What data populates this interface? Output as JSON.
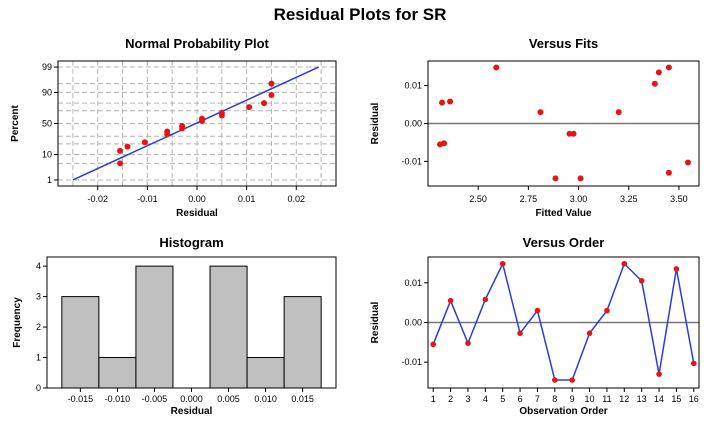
{
  "main_title": "Residual Plots for SR",
  "chart_data": [
    {
      "id": "normal",
      "type": "scatter",
      "title": "Normal Probability Plot",
      "xlabel": "Residual",
      "ylabel": "Percent",
      "xlim": [
        -0.028,
        0.028
      ],
      "x_ticks": [
        -0.02,
        -0.01,
        0.0,
        0.01,
        0.02
      ],
      "x_tick_labels": [
        "-0.02",
        "-0.01",
        "0.00",
        "0.01",
        "0.02"
      ],
      "y_scale": "normal-probability",
      "y_ticks": [
        1,
        10,
        50,
        90,
        99
      ],
      "y_tick_labels": [
        "1",
        "10",
        "50",
        "90",
        "99"
      ],
      "ylim": [
        1,
        99
      ],
      "grid": true,
      "fit_line": {
        "x": [
          -0.025,
          0.0245
        ],
        "y": [
          1,
          99
        ],
        "color": "#2a3cdc"
      },
      "points": [
        {
          "x": -0.0155,
          "y": 5.0
        },
        {
          "x": -0.0155,
          "y": 13.0
        },
        {
          "x": -0.014,
          "y": 17.0
        },
        {
          "x": -0.0105,
          "y": 22.0
        },
        {
          "x": -0.006,
          "y": 33.0
        },
        {
          "x": -0.006,
          "y": 37.0
        },
        {
          "x": -0.003,
          "y": 42.0
        },
        {
          "x": -0.003,
          "y": 46.0
        },
        {
          "x": 0.001,
          "y": 54.0
        },
        {
          "x": 0.001,
          "y": 58.0
        },
        {
          "x": 0.005,
          "y": 63.0
        },
        {
          "x": 0.005,
          "y": 67.0
        },
        {
          "x": 0.0105,
          "y": 75.0
        },
        {
          "x": 0.0135,
          "y": 80.0
        },
        {
          "x": 0.015,
          "y": 88.0
        },
        {
          "x": 0.015,
          "y": 95.0
        }
      ],
      "point_color": "#e81414"
    },
    {
      "id": "fits",
      "type": "scatter",
      "title": "Versus Fits",
      "xlabel": "Fitted Value",
      "ylabel": "Residual",
      "xlim": [
        2.25,
        3.6
      ],
      "x_ticks": [
        2.5,
        2.75,
        3.0,
        3.25,
        3.5
      ],
      "x_tick_labels": [
        "2.50",
        "2.75",
        "3.00",
        "3.25",
        "3.50"
      ],
      "ylim": [
        -0.0165,
        0.0165
      ],
      "y_ticks": [
        -0.01,
        0.0,
        0.01
      ],
      "y_tick_labels": [
        "-0.01",
        "0.00",
        "0.01"
      ],
      "ref_line": 0,
      "grid": false,
      "points": [
        {
          "x": 2.31,
          "y": -0.0055
        },
        {
          "x": 2.32,
          "y": 0.0055
        },
        {
          "x": 2.33,
          "y": -0.0052
        },
        {
          "x": 2.36,
          "y": 0.0058
        },
        {
          "x": 2.59,
          "y": 0.0148
        },
        {
          "x": 2.81,
          "y": 0.003
        },
        {
          "x": 2.885,
          "y": -0.0145
        },
        {
          "x": 2.955,
          "y": -0.0027
        },
        {
          "x": 2.975,
          "y": -0.0027
        },
        {
          "x": 3.01,
          "y": -0.0145
        },
        {
          "x": 3.2,
          "y": 0.003
        },
        {
          "x": 3.38,
          "y": 0.0105
        },
        {
          "x": 3.4,
          "y": 0.0135
        },
        {
          "x": 3.45,
          "y": 0.0148
        },
        {
          "x": 3.45,
          "y": -0.013
        },
        {
          "x": 3.545,
          "y": -0.0103
        }
      ],
      "point_color": "#e81414"
    },
    {
      "id": "hist",
      "type": "bar",
      "title": "Histogram",
      "xlabel": "Residual",
      "ylabel": "Frequency",
      "xlim": [
        -0.0195,
        0.0195
      ],
      "bin_centers": [
        -0.015,
        -0.01,
        -0.005,
        0.0,
        0.005,
        0.01,
        0.015
      ],
      "bin_width": 0.005,
      "values": [
        3,
        1,
        4,
        0,
        4,
        1,
        3
      ],
      "x_tick_labels": [
        "-0.015",
        "-0.010",
        "-0.005",
        "0.000",
        "0.005",
        "0.010",
        "0.015"
      ],
      "ylim": [
        0,
        4.3
      ],
      "y_ticks": [
        0,
        1,
        2,
        3,
        4
      ],
      "y_tick_labels": [
        "0",
        "1",
        "2",
        "3",
        "4"
      ],
      "bar_color": "#c0c0c0"
    },
    {
      "id": "order",
      "type": "line",
      "title": "Versus Order",
      "xlabel": "Observation Order",
      "ylabel": "Residual",
      "xlim": [
        0.7,
        16.3
      ],
      "x": [
        1,
        2,
        3,
        4,
        5,
        6,
        7,
        8,
        9,
        10,
        11,
        12,
        13,
        14,
        15,
        16
      ],
      "x_tick_labels": [
        "1",
        "2",
        "3",
        "4",
        "5",
        "6",
        "7",
        "8",
        "9",
        "10",
        "11",
        "12",
        "13",
        "14",
        "15",
        "16"
      ],
      "values": [
        -0.0055,
        0.0055,
        -0.0052,
        0.0058,
        0.0148,
        -0.0027,
        0.003,
        -0.0145,
        -0.0145,
        -0.0027,
        0.003,
        0.0148,
        0.0105,
        -0.013,
        0.0135,
        -0.0103
      ],
      "ylim": [
        -0.0165,
        0.0165
      ],
      "y_ticks": [
        -0.01,
        0.0,
        0.01
      ],
      "y_tick_labels": [
        "-0.01",
        "0.00",
        "0.01"
      ],
      "ref_line": 0,
      "line_color": "#2a3cdc",
      "point_color": "#e81414"
    }
  ]
}
